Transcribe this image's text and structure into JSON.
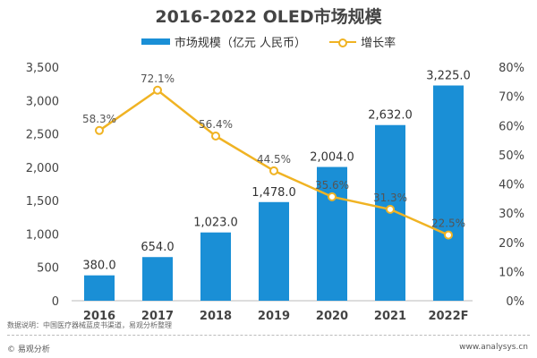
{
  "chart_data": {
    "type": "bar+line",
    "title": "2016-2022 OLED市场规模",
    "categories": [
      "2016",
      "2017",
      "2018",
      "2019",
      "2020",
      "2021",
      "2022F"
    ],
    "series": [
      {
        "name": "市场规模（亿元 人民币）",
        "type": "bar",
        "axis": "left",
        "color": "#1a8fd6",
        "values": [
          380.0,
          654.0,
          1023.0,
          1478.0,
          2004.0,
          2632.0,
          3225.0
        ],
        "labels": [
          "380.0",
          "654.0",
          "1,023.0",
          "1,478.0",
          "2,004.0",
          "2,632.0",
          "3,225.0"
        ]
      },
      {
        "name": "增长率",
        "type": "line",
        "axis": "right",
        "color": "#f0b323",
        "values": [
          58.3,
          72.1,
          56.4,
          44.5,
          35.6,
          31.3,
          22.5
        ],
        "labels": [
          "58.3%",
          "72.1%",
          "56.4%",
          "44.5%",
          "35.6%",
          "31.3%",
          "22.5%"
        ]
      }
    ],
    "y_left": {
      "range": [
        0,
        3500
      ],
      "ticks": [
        "0",
        "500",
        "1,000",
        "1,500",
        "2,000",
        "2,500",
        "3,000",
        "3,500"
      ]
    },
    "y_right": {
      "range": [
        0,
        80
      ],
      "ticks": [
        "0%",
        "10%",
        "20%",
        "30%",
        "40%",
        "50%",
        "60%",
        "70%",
        "80%"
      ]
    },
    "grid": false,
    "legend": "top"
  },
  "footer": {
    "note": "数据说明：中国医疗器械蓝皮书渠道，易观分析整理",
    "copyright": "© 易观分析",
    "site": "www.analysys.cn"
  }
}
